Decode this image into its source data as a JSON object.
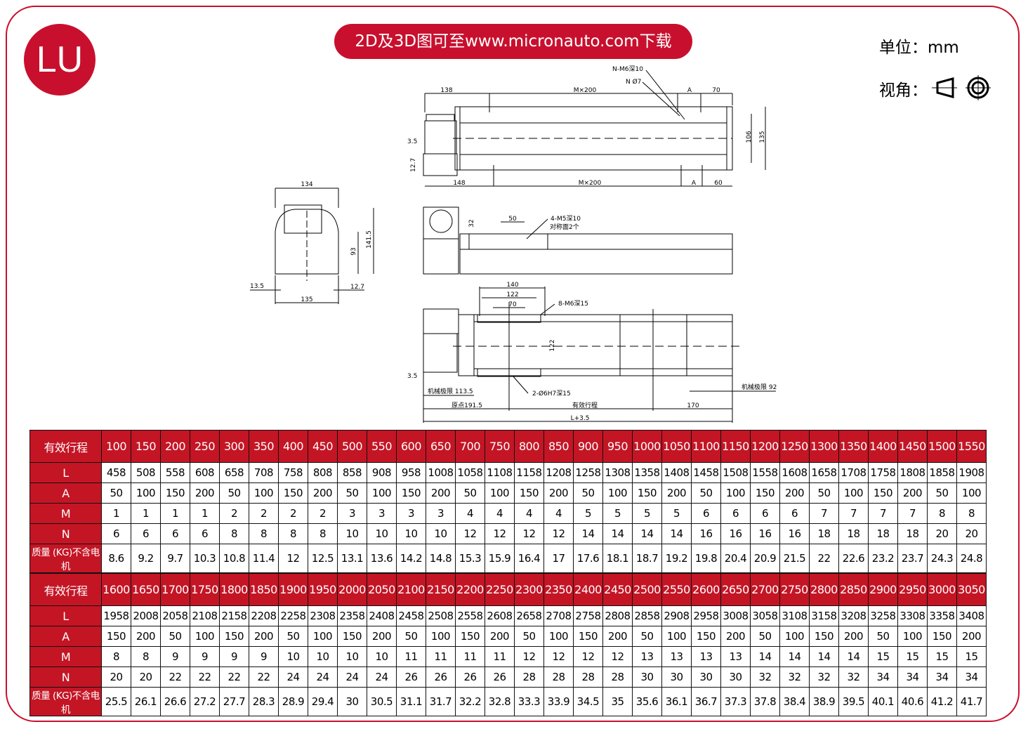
{
  "logo": "LU",
  "banner": "2D及3D图可至www.micronauto.com下载",
  "unit_label": "单位：mm",
  "view_label": "视角：",
  "view_icon": "third-angle-projection-icon",
  "colors": {
    "brand": "#c8102e",
    "table_header": "#c41525"
  },
  "drawings": {
    "top_view": {
      "dim_138": "138",
      "dim_mx200_top": "M×200",
      "dim_a_top": "A",
      "dim_70": "70",
      "note_n_m6": "N-M6深10",
      "note_n_phi7": "N Ø7",
      "dim_3_5": "3.5",
      "dim_12_7": "12.7",
      "dim_148": "148",
      "dim_mx200_bottom": "M×200",
      "dim_a_bottom": "A",
      "dim_60": "60",
      "dim_106": "106",
      "dim_135": "135"
    },
    "side_view": {
      "dim_50": "50",
      "dim_32": "32",
      "note_m5": "4-M5深10",
      "note_m5_sub": "对称面2个"
    },
    "bottom_view": {
      "dim_140": "140",
      "dim_122": "122",
      "dim_70": "70",
      "note_m6": "8-M6深15",
      "dim_122_v": "122",
      "dim_3_5": "3.5",
      "limit_left": "机械极限 113.5",
      "note_pin": "2-Ø6H7深15",
      "limit_right": "机械极限 92",
      "origin": "原点191.5",
      "stroke": "有效行程",
      "dim_170": "170",
      "total": "L+3.5"
    },
    "end_view": {
      "dim_134": "134",
      "dim_93": "93",
      "dim_141_5": "141.5",
      "dim_13_5": "13.5",
      "dim_12_7": "12.7",
      "dim_135": "135"
    }
  },
  "tables": [
    {
      "row_labels": [
        "有效行程",
        "L",
        "A",
        "M",
        "N",
        "质量 (KG)不含电机"
      ],
      "rows": [
        [
          "100",
          "150",
          "200",
          "250",
          "300",
          "350",
          "400",
          "450",
          "500",
          "550",
          "600",
          "650",
          "700",
          "750",
          "800",
          "850",
          "900",
          "950",
          "1000",
          "1050",
          "1100",
          "1150",
          "1200",
          "1250",
          "1300",
          "1350",
          "1400",
          "1450",
          "1500",
          "1550"
        ],
        [
          "458",
          "508",
          "558",
          "608",
          "658",
          "708",
          "758",
          "808",
          "858",
          "908",
          "958",
          "1008",
          "1058",
          "1108",
          "1158",
          "1208",
          "1258",
          "1308",
          "1358",
          "1408",
          "1458",
          "1508",
          "1558",
          "1608",
          "1658",
          "1708",
          "1758",
          "1808",
          "1858",
          "1908"
        ],
        [
          "50",
          "100",
          "150",
          "200",
          "50",
          "100",
          "150",
          "200",
          "50",
          "100",
          "150",
          "200",
          "50",
          "100",
          "150",
          "200",
          "50",
          "100",
          "150",
          "200",
          "50",
          "100",
          "150",
          "200",
          "50",
          "100",
          "150",
          "200",
          "50",
          "100"
        ],
        [
          "1",
          "1",
          "1",
          "1",
          "2",
          "2",
          "2",
          "2",
          "3",
          "3",
          "3",
          "3",
          "4",
          "4",
          "4",
          "4",
          "5",
          "5",
          "5",
          "5",
          "6",
          "6",
          "6",
          "6",
          "7",
          "7",
          "7",
          "7",
          "8",
          "8"
        ],
        [
          "6",
          "6",
          "6",
          "6",
          "8",
          "8",
          "8",
          "8",
          "10",
          "10",
          "10",
          "10",
          "12",
          "12",
          "12",
          "12",
          "14",
          "14",
          "14",
          "14",
          "16",
          "16",
          "16",
          "16",
          "18",
          "18",
          "18",
          "18",
          "20",
          "20"
        ],
        [
          "8.6",
          "9.2",
          "9.7",
          "10.3",
          "10.8",
          "11.4",
          "12",
          "12.5",
          "13.1",
          "13.6",
          "14.2",
          "14.8",
          "15.3",
          "15.9",
          "16.4",
          "17",
          "17.6",
          "18.1",
          "18.7",
          "19.2",
          "19.8",
          "20.4",
          "20.9",
          "21.5",
          "22",
          "22.6",
          "23.2",
          "23.7",
          "24.3",
          "24.8"
        ]
      ]
    },
    {
      "row_labels": [
        "有效行程",
        "L",
        "A",
        "M",
        "N",
        "质量 (KG)不含电机"
      ],
      "rows": [
        [
          "1600",
          "1650",
          "1700",
          "1750",
          "1800",
          "1850",
          "1900",
          "1950",
          "2000",
          "2050",
          "2100",
          "2150",
          "2200",
          "2250",
          "2300",
          "2350",
          "2400",
          "2450",
          "2500",
          "2550",
          "2600",
          "2650",
          "2700",
          "2750",
          "2800",
          "2850",
          "2900",
          "2950",
          "3000",
          "3050"
        ],
        [
          "1958",
          "2008",
          "2058",
          "2108",
          "2158",
          "2208",
          "2258",
          "2308",
          "2358",
          "2408",
          "2458",
          "2508",
          "2558",
          "2608",
          "2658",
          "2708",
          "2758",
          "2808",
          "2858",
          "2908",
          "2958",
          "3008",
          "3058",
          "3108",
          "3158",
          "3208",
          "3258",
          "3308",
          "3358",
          "3408"
        ],
        [
          "150",
          "200",
          "50",
          "100",
          "150",
          "200",
          "50",
          "100",
          "150",
          "200",
          "50",
          "100",
          "150",
          "200",
          "50",
          "100",
          "150",
          "200",
          "50",
          "100",
          "150",
          "200",
          "50",
          "100",
          "150",
          "200",
          "50",
          "100",
          "150",
          "200"
        ],
        [
          "8",
          "8",
          "9",
          "9",
          "9",
          "9",
          "10",
          "10",
          "10",
          "10",
          "11",
          "11",
          "11",
          "11",
          "12",
          "12",
          "12",
          "12",
          "13",
          "13",
          "13",
          "13",
          "14",
          "14",
          "14",
          "14",
          "15",
          "15",
          "15",
          "15"
        ],
        [
          "20",
          "20",
          "22",
          "22",
          "22",
          "22",
          "24",
          "24",
          "24",
          "24",
          "26",
          "26",
          "26",
          "26",
          "28",
          "28",
          "28",
          "28",
          "30",
          "30",
          "30",
          "30",
          "32",
          "32",
          "32",
          "32",
          "34",
          "34",
          "34",
          "34"
        ],
        [
          "25.5",
          "26.1",
          "26.6",
          "27.2",
          "27.7",
          "28.3",
          "28.9",
          "29.4",
          "30",
          "30.5",
          "31.1",
          "31.7",
          "32.2",
          "32.8",
          "33.3",
          "33.9",
          "34.5",
          "35",
          "35.6",
          "36.1",
          "36.7",
          "37.3",
          "37.8",
          "38.4",
          "38.9",
          "39.5",
          "40.1",
          "40.6",
          "41.2",
          "41.7"
        ]
      ]
    }
  ]
}
